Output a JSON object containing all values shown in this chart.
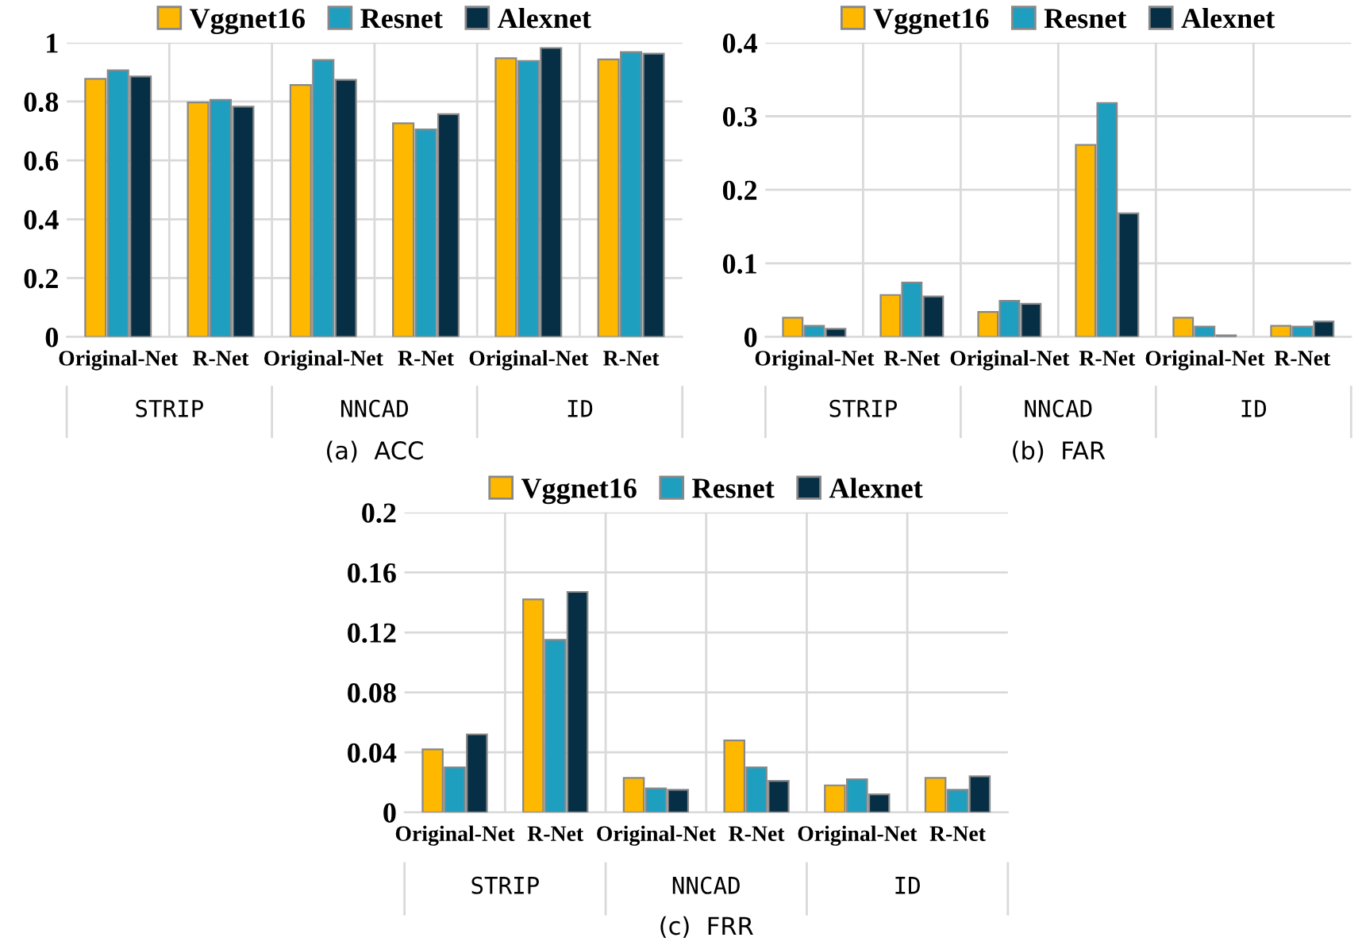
{
  "chart_data": [
    {
      "type": "bar",
      "xlabel": "(a)  ACC",
      "categories": [
        "Original-Net",
        "R-Net",
        "Original-Net",
        "R-Net",
        "Original-Net",
        "R-Net"
      ],
      "annotations": [
        "STRIP",
        "NNCAD",
        "ID"
      ],
      "series": [
        {
          "name": "Vggnet16",
          "color": "#ffb800",
          "values": [
            0.877,
            0.797,
            0.856,
            0.726,
            0.947,
            0.943
          ]
        },
        {
          "name": "Resnet",
          "color": "#1f9fc0",
          "values": [
            0.906,
            0.806,
            0.941,
            0.705,
            0.938,
            0.968
          ]
        },
        {
          "name": "Alexnet",
          "color": "#062f45",
          "values": [
            0.885,
            0.783,
            0.874,
            0.757,
            0.982,
            0.963
          ]
        }
      ],
      "ylim": [
        0,
        1
      ],
      "yticks": [
        0,
        0.2,
        0.4,
        0.6,
        0.8,
        1
      ],
      "grid": true,
      "legend": "top"
    },
    {
      "type": "bar",
      "xlabel": "(b)  FAR",
      "categories": [
        "Original-Net",
        "R-Net",
        "Original-Net",
        "R-Net",
        "Original-Net",
        "R-Net"
      ],
      "annotations": [
        "STRIP",
        "NNCAD",
        "ID"
      ],
      "series": [
        {
          "name": "Vggnet16",
          "color": "#ffb800",
          "values": [
            0.026,
            0.057,
            0.034,
            0.261,
            0.026,
            0.015
          ]
        },
        {
          "name": "Resnet",
          "color": "#1f9fc0",
          "values": [
            0.015,
            0.074,
            0.049,
            0.318,
            0.014,
            0.014
          ]
        },
        {
          "name": "Alexnet",
          "color": "#062f45",
          "values": [
            0.011,
            0.055,
            0.045,
            0.168,
            0.002,
            0.021
          ]
        }
      ],
      "ylim": [
        0,
        0.4
      ],
      "yticks": [
        0,
        0.1,
        0.2,
        0.3,
        0.4
      ],
      "grid": true,
      "legend": "top"
    },
    {
      "type": "bar",
      "xlabel": "(c)  FRR",
      "categories": [
        "Original-Net",
        "R-Net",
        "Original-Net",
        "R-Net",
        "Original-Net",
        "R-Net"
      ],
      "annotations": [
        "STRIP",
        "NNCAD",
        "ID"
      ],
      "series": [
        {
          "name": "Vggnet16",
          "color": "#ffb800",
          "values": [
            0.042,
            0.142,
            0.023,
            0.048,
            0.018,
            0.023
          ]
        },
        {
          "name": "Resnet",
          "color": "#1f9fc0",
          "values": [
            0.03,
            0.115,
            0.016,
            0.03,
            0.022,
            0.015
          ]
        },
        {
          "name": "Alexnet",
          "color": "#062f45",
          "values": [
            0.052,
            0.147,
            0.015,
            0.021,
            0.012,
            0.024
          ]
        }
      ],
      "ylim": [
        0,
        0.2
      ],
      "yticks": [
        0,
        0.04,
        0.08,
        0.12,
        0.16,
        0.2
      ],
      "grid": true,
      "legend": "top"
    }
  ]
}
